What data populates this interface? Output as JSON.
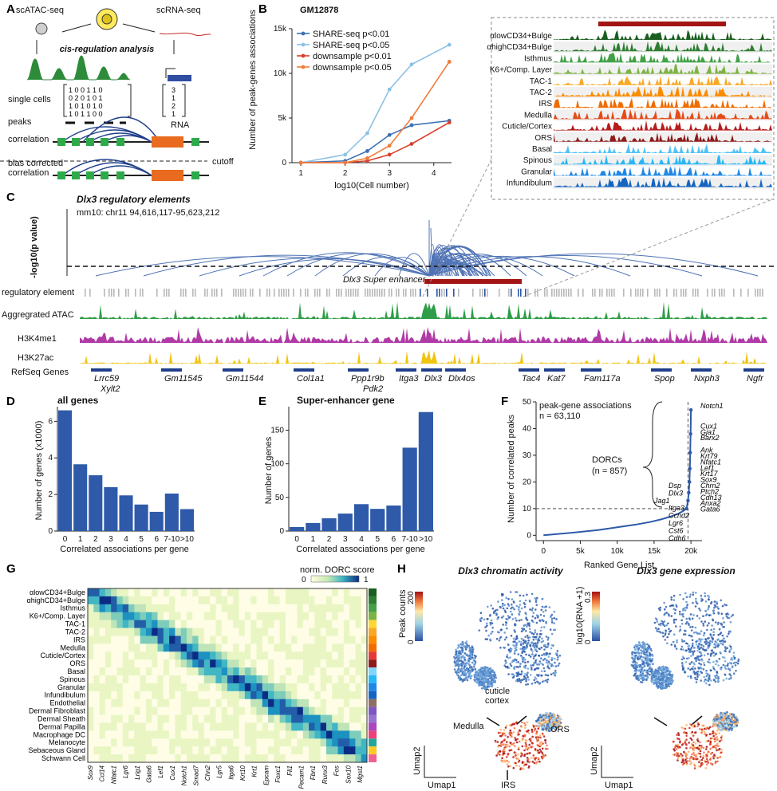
{
  "panels": {
    "A": {
      "letter": "A",
      "scatac_label": "scATAC-seq",
      "scrna_label": "scRNA-seq",
      "cis_label": "cis-regulation analysis",
      "single_cells_label": "single cells",
      "peaks_label": "peaks",
      "rna_label": "RNA",
      "correlation_label": "correlation",
      "bias_label": "bias corrected",
      "bias_label2": "correlation",
      "cutoff_label": "cutoff",
      "matrix_rows": [
        "1 0 0 1 1 0",
        "0 2 0 1 0 1",
        "1 0 1 0 1 0",
        "1 0 1 1 0 0"
      ],
      "rna_vector": [
        "3",
        "1",
        "2",
        "1"
      ]
    },
    "B": {
      "letter": "B",
      "title": "GM12878",
      "ylabel": "Number of peak-genes associations",
      "xlabel": "log10(Cell number)",
      "track_labels": [
        "αlowCD34+Bulge",
        "αhighCD34+Bulge",
        "Isthmus",
        "K6+/Comp. Layer",
        "TAC-1",
        "TAC-2",
        "IRS",
        "Medulla",
        "Cuticle/Cortex",
        "ORS",
        "Basal",
        "Spinous",
        "Granular",
        "Infundibulum"
      ],
      "track_colors": [
        "#1b5e20",
        "#2e7d32",
        "#43a047",
        "#7cb342",
        "#f9a825",
        "#fb8c00",
        "#ef6c00",
        "#e64a19",
        "#b71c1c",
        "#8e1b1b",
        "#4fc3f7",
        "#29b6f6",
        "#1e88e5",
        "#1565c0"
      ]
    },
    "C": {
      "letter": "C",
      "title": "Dlx3 regulatory elements",
      "coords": "mm10: chr11 94,616,117-95,623,212",
      "ylabel": "-log10(p value)",
      "super_enhancer": "Dlx3 Super enhancer",
      "tracks": [
        "regulatory element",
        "Aggregrated ATAC",
        "H3K4me1",
        "H3K27ac",
        "RefSeq Genes"
      ],
      "genes_top": [
        "Lrrc59",
        "Gm11545",
        "Gm11544",
        "Col1a1",
        "Ppp1r9b",
        "Itga3",
        "Dlx3",
        "Dlx4os",
        "Tac4",
        "Kat7",
        "Fam117a",
        "Spop",
        "Nxph3",
        "Ngfr"
      ],
      "genes_bottom": [
        "Xylt2",
        "Pdk2"
      ]
    },
    "D": {
      "letter": "D",
      "title": "all genes",
      "ylabel": "Number of genes (x1000)",
      "xlabel": "Correlated associations per gene"
    },
    "E": {
      "letter": "E",
      "title": "Super-enhancer gene",
      "ylabel": "Number of genes",
      "xlabel": "Correlated associations per gene"
    },
    "F": {
      "letter": "F",
      "title": "peak-gene associations",
      "n": "n = 63,110",
      "dorcs": "DORCs",
      "dorcs_n": "(n = 857)",
      "ylabel": "Number of correlated peaks",
      "xlabel": "Ranked Gene List",
      "genes_right": [
        "Notch1",
        "Cux1",
        "Gja1",
        "Barx2",
        "Ank",
        "Krt79",
        "Nfatc1",
        "Lef1",
        "Krt17",
        "Sox9",
        "Chrn2",
        "Ptch2",
        "Cdh13",
        "Anxa2",
        "Gata6"
      ],
      "genes_left": [
        "Dsp",
        "Dlx3",
        "Jag1",
        "Itga3",
        "Ccnd2",
        "Lgr6",
        "Cst6",
        "Cdh6"
      ]
    },
    "G": {
      "letter": "G",
      "legend_title": "norm. DORC score",
      "legend_min": "0",
      "legend_max": "1",
      "rows": [
        "αlowCD34+Bulge",
        "αhighCD34+Bulge",
        "Isthmus",
        "K6+/Comp. Layer",
        "TAC-1",
        "TAC-2",
        "IRS",
        "Medulla",
        "Cuticle/Cortex",
        "ORS",
        "Basal",
        "Spinous",
        "Granular",
        "Infundibulum",
        "Endothelial",
        "Dermal Fibroblast",
        "Dermal Sheath",
        "Dermal Papilla",
        "Macrophage DC",
        "Melanocyte",
        "Sebaceous Gland",
        "Schwann Cell"
      ],
      "row_colors": [
        "#1b5e20",
        "#2e7d32",
        "#43a047",
        "#7cb342",
        "#fdd835",
        "#f9a825",
        "#fb8c00",
        "#ef6c00",
        "#e53935",
        "#8e1b1b",
        "#81d4fa",
        "#29b6f6",
        "#1e88e5",
        "#1565c0",
        "#8d6e63",
        "#7e57c2",
        "#9575cd",
        "#ab47bc",
        "#ec407a",
        "#26a69a",
        "#ffca28",
        "#f06292"
      ],
      "col_genes": [
        "Sox9",
        "Ccl14",
        "Nfatc1",
        "Lgr6",
        "Lrig1",
        "Gata6",
        "Lef1",
        "Cux1",
        "Notch1",
        "Smad7",
        "Chn2",
        "Lgr5",
        "Itga6",
        "Krt10",
        "Krt1",
        "Epcam",
        "Foxc1",
        "Fli1",
        "Pecam1",
        "Fbn1",
        "Runx3",
        "Fos",
        "Sox10",
        "Mgst1"
      ]
    },
    "H": {
      "letter": "H",
      "title_left": "Dlx3 chromatin activity",
      "title_right": "Dlx3 gene expression",
      "legend_left_label": "Peak counts",
      "legend_left_min": "0",
      "legend_left_max": "200",
      "legend_right_label": "log10(RNA +1)",
      "legend_right_min": "0",
      "legend_right_max": "0.3",
      "umap1": "Umap1",
      "umap2": "Umap2",
      "ann_cuticle": "cuticle",
      "ann_cortex": "cortex",
      "ann_medulla": "Medulla",
      "ann_ors": "ORS",
      "ann_irs": "IRS"
    }
  },
  "chart_data": [
    {
      "type": "line",
      "title": "GM12878",
      "xlabel": "log10(Cell number)",
      "ylabel": "Number of peak-genes associations",
      "xlim": [
        0.8,
        4.4
      ],
      "ylim": [
        0,
        15000
      ],
      "xticks": [
        1,
        2,
        3,
        4
      ],
      "yticks": [
        0,
        5000,
        10000,
        15000
      ],
      "ytick_labels": [
        "0",
        "5k",
        "10k",
        "15k"
      ],
      "legend_position": "top-left",
      "series": [
        {
          "name": "SHARE-seq p<0.01",
          "color": "#3a72b5",
          "x": [
            1,
            2,
            2.5,
            3,
            3.5,
            4.35
          ],
          "y": [
            0,
            200,
            1300,
            3100,
            4200,
            4700
          ]
        },
        {
          "name": "SHARE-seq p<0.05",
          "color": "#8cc1e5",
          "x": [
            1,
            2,
            2.5,
            3,
            3.5,
            4.35
          ],
          "y": [
            0,
            900,
            3300,
            8200,
            11000,
            13200
          ]
        },
        {
          "name": "downsample p<0.01",
          "color": "#d8402b",
          "x": [
            1,
            2,
            2.5,
            3,
            3.5,
            4.35
          ],
          "y": [
            0,
            0,
            200,
            900,
            2100,
            4500
          ]
        },
        {
          "name": "downsample p<0.05",
          "color": "#f07c39",
          "x": [
            1,
            2,
            2.5,
            3,
            3.5,
            4.35
          ],
          "y": [
            0,
            0,
            500,
            1900,
            5000,
            11300
          ]
        }
      ]
    },
    {
      "type": "bar",
      "title": "all genes",
      "xlabel": "Correlated associations per gene",
      "ylabel": "Number of genes (x1000)",
      "ylim": [
        0,
        6.8
      ],
      "yticks": [
        0,
        2,
        4,
        6
      ],
      "categories": [
        "0",
        "1",
        "2",
        "3",
        "4",
        "5",
        "6",
        "7-10",
        ">10"
      ],
      "values": [
        6.6,
        3.65,
        3.05,
        2.4,
        1.95,
        1.45,
        1.05,
        2.05,
        1.2
      ]
    },
    {
      "type": "bar",
      "title": "Super-enhancer gene",
      "xlabel": "Correlated associations per gene",
      "ylabel": "Number of genes",
      "ylim": [
        0,
        185
      ],
      "yticks": [
        0,
        50,
        100,
        150
      ],
      "categories": [
        "0",
        "1",
        "2",
        "3",
        "4",
        "5",
        "6",
        "7-10",
        ">10"
      ],
      "values": [
        6,
        12,
        19,
        26,
        40,
        33,
        38,
        124,
        177
      ]
    },
    {
      "type": "scatter",
      "title": "peak-gene associations",
      "xlabel": "Ranked Gene List",
      "ylabel": "Number of correlated peaks",
      "xlim": [
        -1000,
        21500
      ],
      "ylim": [
        -2,
        50
      ],
      "xticks": [
        0,
        5000,
        10000,
        15000,
        20000
      ],
      "xtick_labels": [
        "0",
        "5k",
        "10k",
        "15k",
        "20k"
      ],
      "yticks": [
        0,
        10,
        20,
        30,
        40,
        50
      ],
      "cutoff_y": 10,
      "cutoff_x": 19600,
      "x": [
        0,
        4000,
        7500,
        10000,
        12500,
        14500,
        16000,
        17200,
        18200,
        18900,
        19400,
        19600,
        19700,
        19800,
        19850,
        19900,
        19950,
        20000
      ],
      "y": [
        0,
        1,
        2,
        3,
        4,
        5,
        6,
        7,
        8,
        9,
        10,
        13,
        16,
        20,
        25,
        31,
        38,
        47
      ]
    }
  ]
}
